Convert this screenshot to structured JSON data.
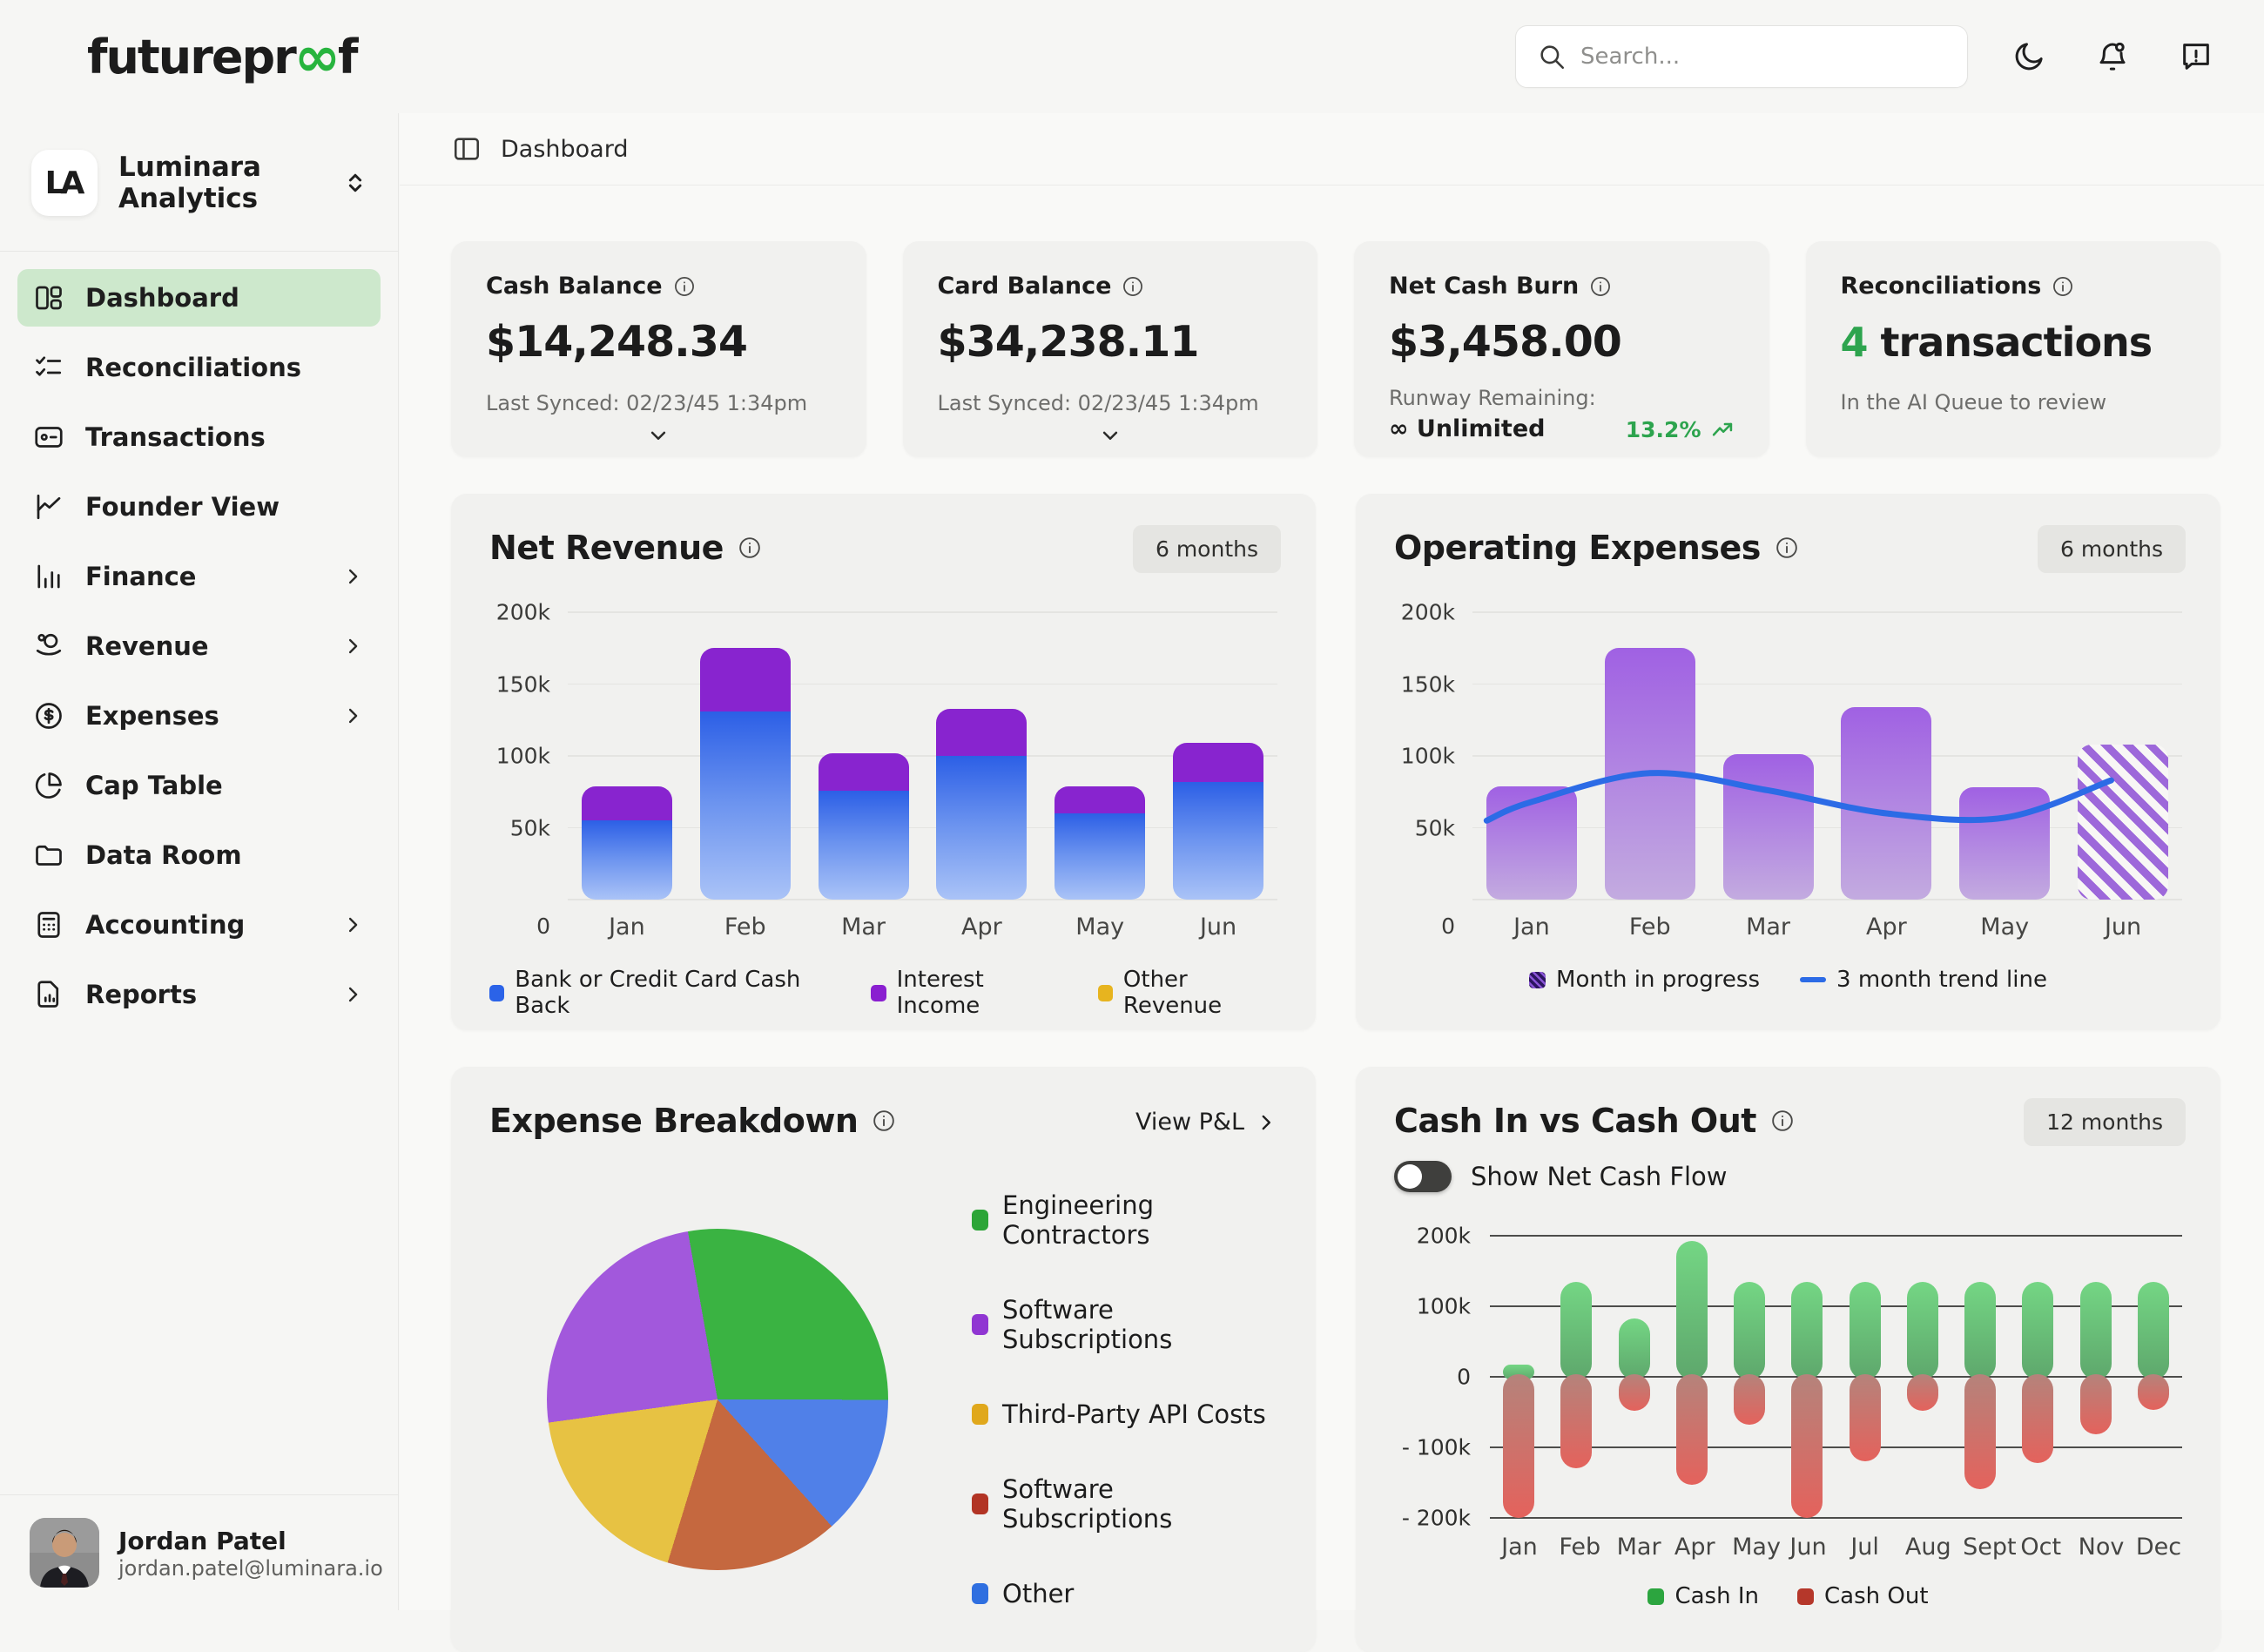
{
  "topbar": {
    "logo": {
      "pre": "futurepr",
      "oo": "∞",
      "post": "f"
    },
    "search_placeholder": "Search...",
    "icons": [
      "moon",
      "bell",
      "feedback"
    ]
  },
  "sidebar": {
    "workspace": {
      "initials": "LA",
      "name": "Luminara Analytics"
    },
    "items": [
      {
        "label": "Dashboard",
        "icon": "dashboard",
        "active": true,
        "chevron": false
      },
      {
        "label": "Reconciliations",
        "icon": "checklist",
        "active": false,
        "chevron": false
      },
      {
        "label": "Transactions",
        "icon": "card",
        "active": false,
        "chevron": false
      },
      {
        "label": "Founder View",
        "icon": "chart-line",
        "active": false,
        "chevron": false
      },
      {
        "label": "Finance",
        "icon": "chart-bar",
        "active": false,
        "chevron": true
      },
      {
        "label": "Revenue",
        "icon": "coins",
        "active": false,
        "chevron": true
      },
      {
        "label": "Expenses",
        "icon": "dollar-circle",
        "active": false,
        "chevron": true
      },
      {
        "label": "Cap Table",
        "icon": "pie",
        "active": false,
        "chevron": false
      },
      {
        "label": "Data Room",
        "icon": "folder",
        "active": false,
        "chevron": false
      },
      {
        "label": "Accounting",
        "icon": "calculator",
        "active": false,
        "chevron": true
      },
      {
        "label": "Reports",
        "icon": "report",
        "active": false,
        "chevron": true
      }
    ],
    "user": {
      "name": "Jordan Patel",
      "email": "jordan.patel@luminara.io"
    }
  },
  "breadcrumb": "Dashboard",
  "stat_cards": [
    {
      "title": "Cash Balance",
      "value": "$14,248.34",
      "subtitle": "Last Synced: 02/23/45 1:34pm"
    },
    {
      "title": "Card Balance",
      "value": "$34,238.11",
      "subtitle": "Last Synced: 02/23/45 1:34pm"
    },
    {
      "title": "Net Cash Burn",
      "value": "$3,458.00",
      "runway_label": "Runway Remaining:",
      "runway_value": "∞ Unlimited",
      "delta": "13.2%"
    },
    {
      "title": "Reconciliations",
      "value_number": "4",
      "value_unit": " transactions",
      "subtitle": "In the AI Queue to review"
    }
  ],
  "chart_data": [
    {
      "id": "net_revenue",
      "type": "bar",
      "title": "Net Revenue",
      "range_label": "6 months",
      "categories": [
        "Jan",
        "Feb",
        "Mar",
        "Apr",
        "May",
        "Jun"
      ],
      "series": [
        {
          "name": "Bank or Credit Card Cash Back",
          "color_top": "#2c5fe6",
          "color_bottom": "#aac3f7",
          "legend_color": "#2b63e8",
          "values": [
            55000,
            131000,
            76000,
            100000,
            60000,
            82000
          ]
        },
        {
          "name": "Interest Income",
          "color_top": "#8824cf",
          "color_bottom": "#8824cf",
          "legend_color": "#8a1fd0",
          "values": [
            24000,
            44000,
            26000,
            33000,
            19000,
            27000
          ]
        },
        {
          "name": "Other Revenue",
          "color_top": "#e7b41f",
          "color_bottom": "#e7b41f",
          "legend_color": "#e7b41f",
          "values": [
            0,
            0,
            0,
            0,
            0,
            0
          ]
        }
      ],
      "ylim": [
        0,
        200000
      ],
      "yticks": [
        "200k",
        "150k",
        "100k",
        "50k"
      ],
      "zero_label": "0",
      "grid": true,
      "legend_position": "bottom"
    },
    {
      "id": "operating_expenses",
      "type": "bar",
      "title": "Operating Expenses",
      "range_label": "6 months",
      "categories": [
        "Jan",
        "Feb",
        "Mar",
        "Apr",
        "May",
        "Jun"
      ],
      "values": [
        79000,
        175000,
        101000,
        134000,
        78000,
        108000
      ],
      "bar_color_top": "#a061e3",
      "bar_color_bottom": "#c3abe0",
      "in_progress_index": 5,
      "hatch_color": "#9d68da",
      "trend_line": {
        "name": "3 month trend line",
        "color": "#2c6be6",
        "points_month_value": [
          [
            -0.38,
            55000
          ],
          [
            0,
            68000
          ],
          [
            1,
            88000
          ],
          [
            2,
            76000
          ],
          [
            3,
            60000
          ],
          [
            4,
            57000
          ],
          [
            4.9,
            83000
          ]
        ]
      },
      "legend": [
        {
          "label": "Month in progress",
          "swatch": "hatch"
        },
        {
          "label": "3 month trend line",
          "swatch": "line"
        }
      ],
      "ylim": [
        0,
        200000
      ],
      "yticks": [
        "200k",
        "150k",
        "100k",
        "50k"
      ],
      "zero_label": "0",
      "grid": true,
      "legend_position": "bottom"
    },
    {
      "id": "expense_breakdown",
      "type": "pie",
      "title": "Expense Breakdown",
      "link_label": "View P&L",
      "start_angle": -10,
      "slices": [
        {
          "label": "Engineering Contractors",
          "color": "#3ab342",
          "legend_color": "#2ca537",
          "percent": 27.8
        },
        {
          "label": "Other",
          "color": "#5080e8",
          "legend_color": "#2f6fe0",
          "percent": 13.3
        },
        {
          "label": "Software Subscriptions",
          "color": "#c5683f",
          "legend_color": "#b23424",
          "percent": 16.4
        },
        {
          "label": "Third-Party API Costs",
          "color": "#e7c243",
          "legend_color": "#e0a81c",
          "percent": 18.1
        },
        {
          "label": "Software Subscriptions",
          "color": "#a258dc",
          "legend_color": "#9036d2",
          "percent": 24.4
        }
      ],
      "legend_order": [
        0,
        4,
        3,
        2,
        1
      ],
      "legend_position": "right"
    },
    {
      "id": "cash_in_out",
      "type": "bar",
      "title": "Cash In vs Cash Out",
      "range_label": "12 months",
      "toggle_label": "Show Net Cash Flow",
      "toggle_on": false,
      "categories": [
        "Jan",
        "Feb",
        "Mar",
        "Apr",
        "May",
        "Jun",
        "Jul",
        "Aug",
        "Sept",
        "Oct",
        "Nov",
        "Dec"
      ],
      "series": [
        {
          "name": "Cash In",
          "legend_color": "#2ca53f",
          "color_top": "#74d684",
          "color_bottom": "#5ea76c",
          "values": [
            17000,
            134000,
            83000,
            192000,
            134000,
            134000,
            134000,
            134000,
            134000,
            134000,
            134000,
            134000
          ]
        },
        {
          "name": "Cash Out",
          "legend_color": "#b5372a",
          "color_top": "#b5837b",
          "color_bottom": "#e4625c",
          "values": [
            -200000,
            -130000,
            -48000,
            -153000,
            -68000,
            -200000,
            -120000,
            -48000,
            -159000,
            -122000,
            -82000,
            -47000
          ]
        }
      ],
      "ylim": [
        -200000,
        200000
      ],
      "yticks": [
        "200k",
        "100k",
        "0",
        "- 100k",
        "- 200k"
      ],
      "grid": true,
      "legend_position": "bottom"
    }
  ]
}
